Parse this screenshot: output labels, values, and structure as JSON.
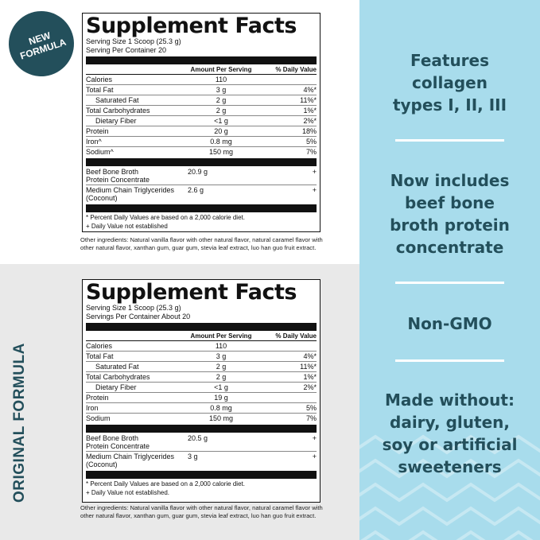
{
  "badge": {
    "line1": "NEW",
    "line2": "FORMULA"
  },
  "original_label": "ORIGINAL FORMULA",
  "new_panel": {
    "title": "Supplement Facts",
    "serving_size": "Serving Size 1 Scoop (25.3 g)",
    "servings": "Serving Per Container 20",
    "col_amount": "Amount Per Serving",
    "col_dv": "% Daily Value",
    "rows": [
      {
        "name": "Calories",
        "amount": "110",
        "dv": ""
      },
      {
        "name": "Total Fat",
        "amount": "3 g",
        "dv": "4%*"
      },
      {
        "name": "Saturated Fat",
        "amount": "2 g",
        "dv": "11%*"
      },
      {
        "name": "Total Carbohydrates",
        "amount": "2 g",
        "dv": "1%*"
      },
      {
        "name": "Dietary Fiber",
        "amount": "<1 g",
        "dv": "2%*"
      },
      {
        "name": "Protein",
        "amount": "20 g",
        "dv": "18%"
      },
      {
        "name": "Iron^",
        "amount": "0.8 mg",
        "dv": "5%"
      },
      {
        "name": "Sodium^",
        "amount": "150 mg",
        "dv": "7%"
      }
    ],
    "extras": [
      {
        "name1": "Beef Bone Broth",
        "name2": "Protein Concentrate",
        "amount": "20.9 g",
        "dv": "+"
      },
      {
        "name1": "Medium Chain Triglycerides",
        "name2": "(Coconut)",
        "amount": "2.6 g",
        "dv": "+"
      }
    ],
    "foot1": "* Percent Daily Values are based on a 2,000 calorie diet.",
    "foot2": "+ Daily Value not established",
    "other": "Other ingredients: Natural vanilla flavor with other natural flavor, natural caramel flavor with other natural flavor, xanthan gum, guar gum, stevia leaf extract, luo han guo fruit extract."
  },
  "orig_panel": {
    "title": "Supplement Facts",
    "serving_size": "Serving Size 1 Scoop (25.3 g)",
    "servings": "Servings Per Container About 20",
    "col_amount": "Amount Per Serving",
    "col_dv": "% Daily Value",
    "rows": [
      {
        "name": "Calories",
        "amount": "110",
        "dv": ""
      },
      {
        "name": "Total Fat",
        "amount": "3 g",
        "dv": "4%*"
      },
      {
        "name": "Saturated Fat",
        "amount": "2 g",
        "dv": "11%*"
      },
      {
        "name": "Total Carbohydrates",
        "amount": "2 g",
        "dv": "1%*"
      },
      {
        "name": "Dietary Fiber",
        "amount": "<1 g",
        "dv": "2%*"
      },
      {
        "name": "Protein",
        "amount": "19 g",
        "dv": ""
      },
      {
        "name": "Iron",
        "amount": "0.8 mg",
        "dv": "5%"
      },
      {
        "name": "Sodium",
        "amount": "150 mg",
        "dv": "7%"
      }
    ],
    "extras": [
      {
        "name1": "Beef Bone Broth",
        "name2": "Protein Concentrate",
        "amount": "20.5 g",
        "dv": "+"
      },
      {
        "name1": "Medium Chain Triglycerides",
        "name2": "(Coconut)",
        "amount": "3 g",
        "dv": "+"
      }
    ],
    "foot1": "* Percent Daily Values are based on a 2,000 calorie diet.",
    "foot2": "+ Daily Value not established.",
    "other": "Other ingredients: Natural vanilla flavor with other natural flavor, natural caramel flavor with other natural flavor, xanthan gum, guar gum, stevia leaf extract, luo han guo fruit extract."
  },
  "features": [
    [
      "Features",
      "collagen",
      "types I, II, III"
    ],
    [
      "Now includes",
      "beef bone",
      "broth protein",
      "concentrate"
    ],
    [
      "Non-GMO"
    ],
    [
      "Made without:",
      "dairy, gluten,",
      "soy or artificial",
      "sweeteners"
    ]
  ],
  "colors": {
    "teal": "#234f5b",
    "sky": "#a8dcec",
    "gray_bg": "#e9e9e9"
  }
}
